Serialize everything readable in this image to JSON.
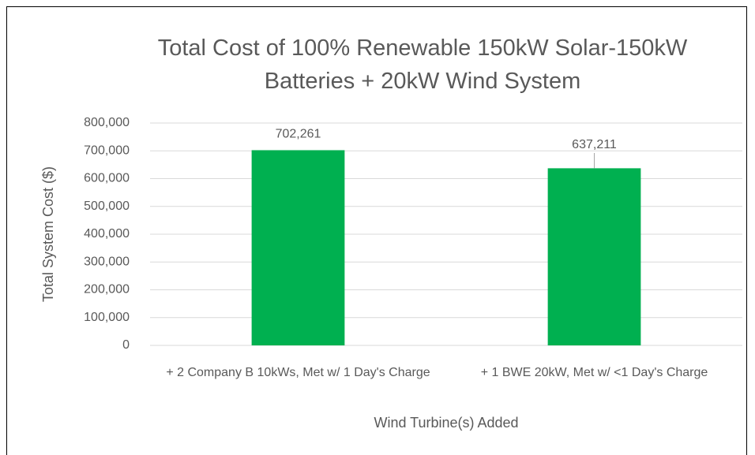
{
  "chart_data": {
    "type": "bar",
    "title": "Total Cost of 100% Renewable 150kW Solar-150kW Batteries + 20kW Wind System",
    "x_label": "Wind Turbine(s) Added",
    "y_label": "Total System Cost ($)",
    "categories": [
      "+ 2 Company B 10kWs, Met w/ 1 Day's Charge",
      "+ 1 BWE 20kW, Met w/ <1 Day's Charge"
    ],
    "values": [
      702261,
      637211
    ],
    "value_labels": [
      "702,261",
      "637,211"
    ],
    "color": "#00b050",
    "ylim": [
      0,
      800000
    ],
    "yticks": [
      0,
      {
        "value": 100000,
        "label": "100,000"
      },
      {
        "value": 200000,
        "label": "200,000"
      },
      {
        "value": 300000,
        "label": "300,000"
      },
      {
        "value": 400000,
        "label": "400,000"
      },
      {
        "value": 500000,
        "label": "500,000"
      },
      {
        "value": 600000,
        "label": "600,000"
      },
      {
        "value": 700000,
        "label": "700,000"
      },
      {
        "value": 800000,
        "label": "800,000"
      }
    ],
    "grid": true
  }
}
